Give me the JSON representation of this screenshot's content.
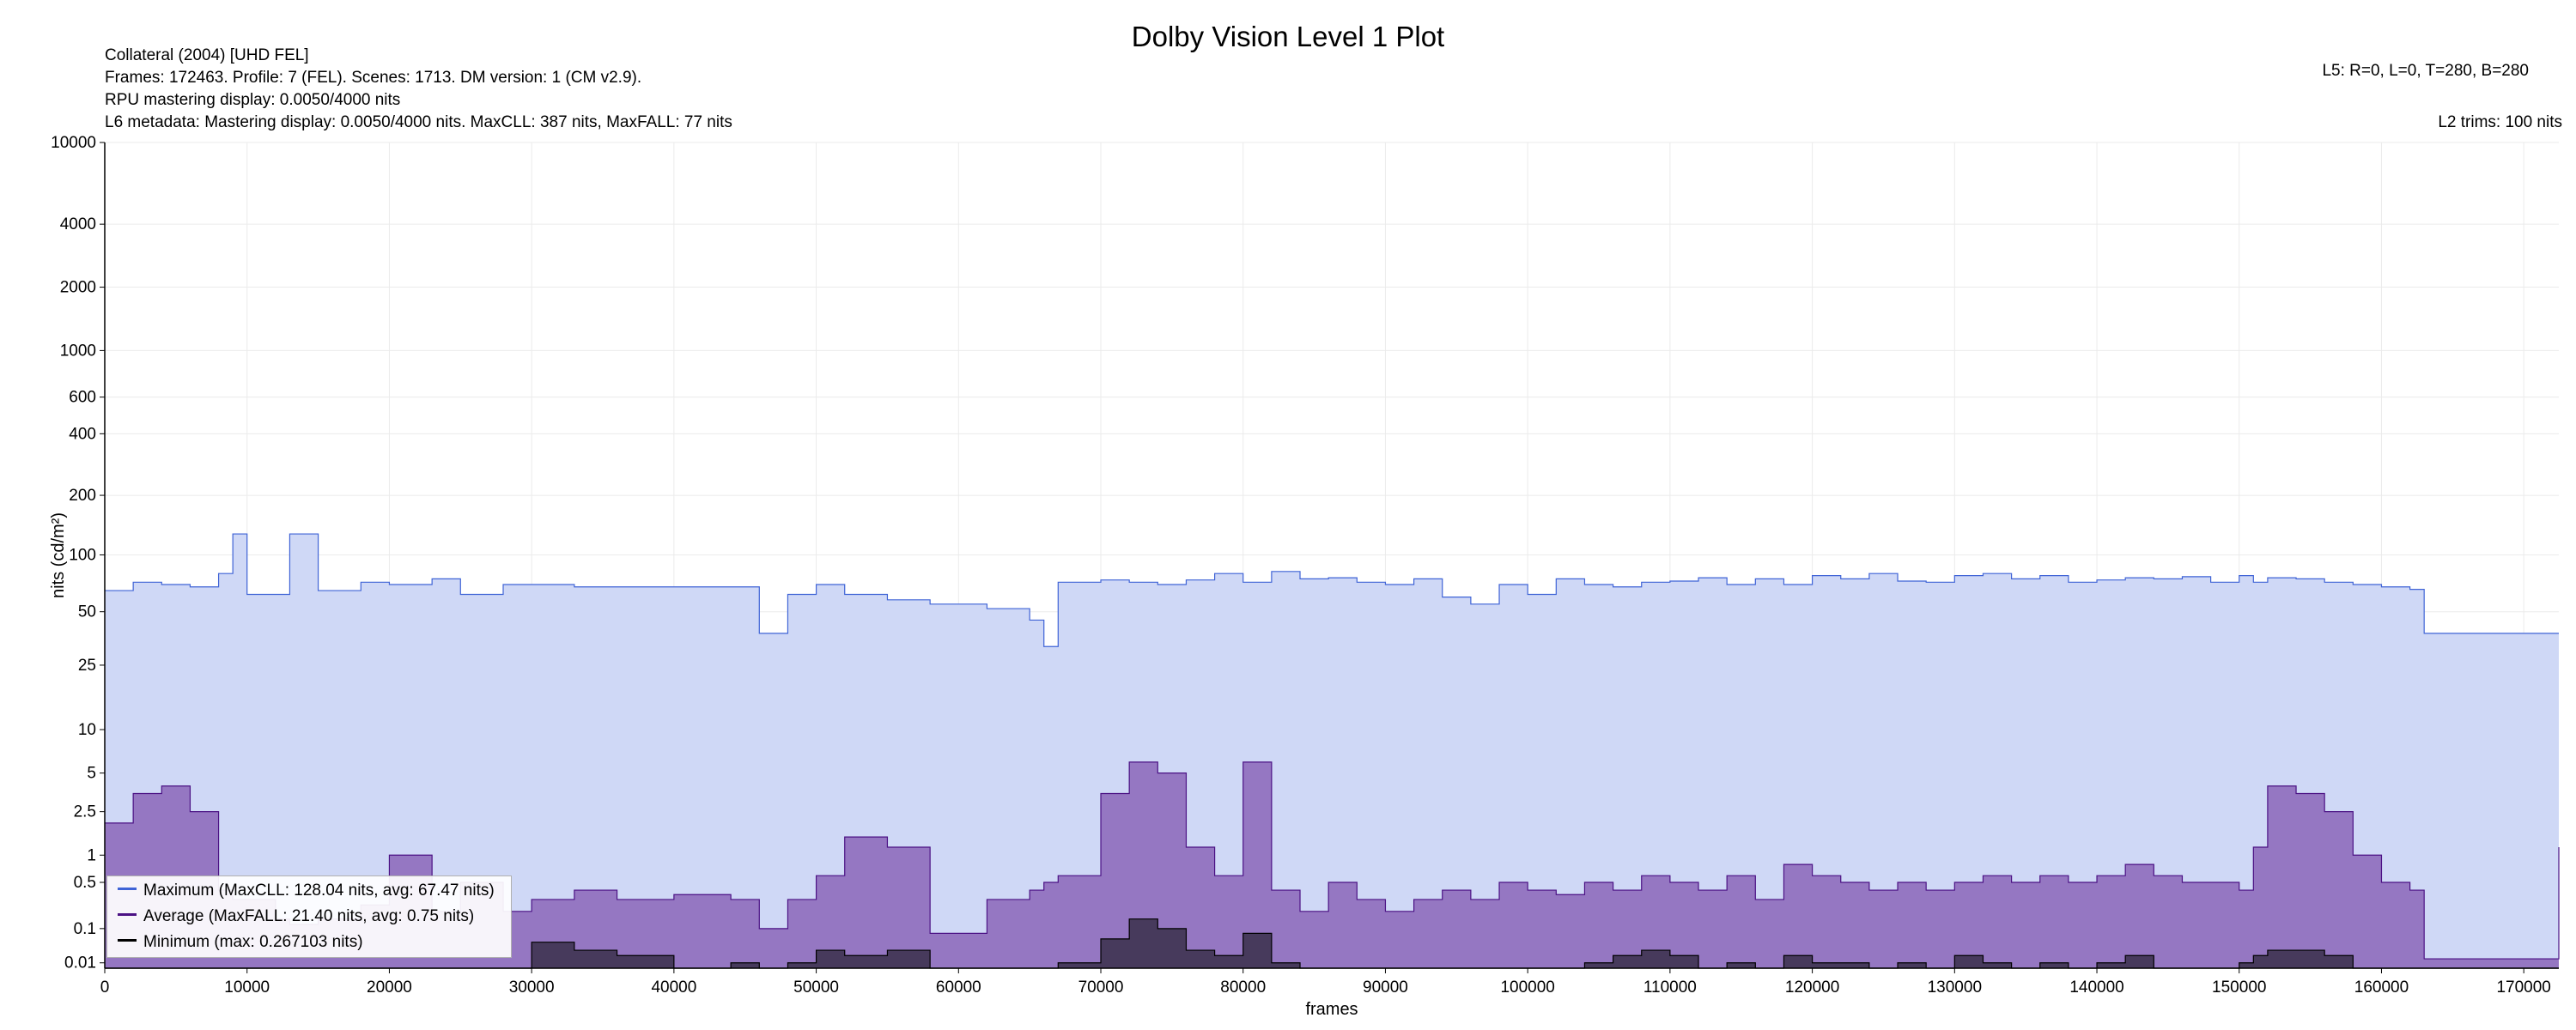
{
  "title": "Dolby Vision Level 1 Plot",
  "info": {
    "line1": "Collateral (2004) [UHD FEL]",
    "line2": "Frames: 172463. Profile: 7 (FEL). Scenes: 1713. DM version: 1 (CM v2.9).",
    "line3": "RPU mastering display: 0.0050/4000 nits",
    "line4": "L6 metadata: Mastering display: 0.0050/4000 nits. MaxCLL: 387 nits, MaxFALL: 77 nits",
    "l5": "L5: R=0, L=0, T=280, B=280",
    "l2": "L2 trims: 100 nits"
  },
  "legend": {
    "maximum": "Maximum (MaxCLL: 128.04 nits, avg: 67.47 nits)",
    "average": "Average (MaxFALL: 21.40 nits, avg: 0.75 nits)",
    "minimum": "Minimum (max: 0.267103 nits)"
  },
  "colors": {
    "maximum_line": "#3f63d6",
    "maximum_fill": "#cfd8f6",
    "average_line": "#4b1184",
    "average_fill": "#9577c2",
    "minimum_line": "#000000",
    "minimum_fill": "#3a2f4a"
  },
  "chart_data": {
    "type": "area",
    "title": "Dolby Vision Level 1 Plot",
    "xlabel": "frames",
    "ylabel": "nits (cd/m²)",
    "xlim": [
      0,
      172463
    ],
    "ylim": [
      0.005,
      10000
    ],
    "yscale": "PQ (non-linear)",
    "grid": true,
    "legend_position": "bottom-left",
    "x_ticks": [
      0,
      10000,
      20000,
      30000,
      40000,
      50000,
      60000,
      70000,
      80000,
      90000,
      100000,
      110000,
      120000,
      130000,
      140000,
      150000,
      160000,
      170000
    ],
    "y_ticks": [
      0.01,
      0.1,
      0.5,
      1,
      2.5,
      5,
      10,
      25,
      50,
      100,
      200,
      400,
      600,
      1000,
      2000,
      4000,
      10000
    ],
    "y_tick_labels": [
      "0.01",
      "0.1",
      "0.5",
      "1",
      "2.5",
      "5",
      "10",
      "25",
      "50",
      "100",
      "200",
      "400",
      "600",
      "1000",
      "2000",
      "4000",
      "10000"
    ],
    "x": [
      0,
      2000,
      4000,
      6000,
      8000,
      9000,
      10000,
      12000,
      13000,
      15000,
      18000,
      20000,
      23000,
      25000,
      28000,
      30000,
      33000,
      36000,
      40000,
      44000,
      46000,
      48000,
      50000,
      52000,
      55000,
      58000,
      62000,
      65000,
      66000,
      67000,
      70000,
      72000,
      74000,
      76000,
      78000,
      80000,
      82000,
      84000,
      86000,
      88000,
      90000,
      92000,
      94000,
      96000,
      98000,
      100000,
      102000,
      104000,
      106000,
      108000,
      110000,
      112000,
      114000,
      116000,
      118000,
      120000,
      122000,
      124000,
      126000,
      128000,
      130000,
      132000,
      134000,
      136000,
      138000,
      140000,
      142000,
      144000,
      146000,
      148000,
      150000,
      151000,
      152000,
      154000,
      156000,
      158000,
      160000,
      162000,
      163000,
      166000,
      170000,
      172000,
      172463
    ],
    "series": [
      {
        "name": "Maximum (MaxCLL: 128.04 nits, avg: 67.47 nits)",
        "values": [
          65,
          72,
          70,
          68,
          80,
          128,
          62,
          62,
          128,
          65,
          72,
          70,
          75,
          62,
          70,
          70,
          68,
          68,
          68,
          68,
          38,
          62,
          70,
          62,
          58,
          55,
          52,
          45,
          32,
          72,
          74,
          72,
          70,
          74,
          80,
          72,
          82,
          75,
          76,
          72,
          70,
          75,
          60,
          55,
          70,
          62,
          75,
          70,
          68,
          72,
          73,
          76,
          70,
          75,
          70,
          78,
          75,
          80,
          73,
          72,
          78,
          80,
          75,
          78,
          72,
          74,
          76,
          75,
          77,
          72,
          78,
          72,
          76,
          75,
          72,
          70,
          68,
          66,
          38,
          38,
          38,
          38,
          38
        ]
      },
      {
        "name": "Average (MaxFALL: 21.40 nits, avg: 0.75 nits)",
        "values": [
          2.0,
          3.5,
          4.0,
          2.5,
          0.4,
          0.3,
          0.3,
          0.15,
          0.12,
          0.15,
          0.25,
          1.0,
          0.2,
          0.5,
          0.2,
          0.3,
          0.4,
          0.3,
          0.35,
          0.3,
          0.1,
          0.3,
          0.6,
          1.5,
          1.2,
          0.08,
          0.3,
          0.4,
          0.5,
          0.6,
          3.5,
          6.0,
          5.0,
          1.2,
          0.6,
          6.0,
          0.4,
          0.2,
          0.5,
          0.3,
          0.2,
          0.3,
          0.4,
          0.3,
          0.5,
          0.4,
          0.35,
          0.5,
          0.4,
          0.6,
          0.5,
          0.4,
          0.6,
          0.3,
          0.8,
          0.6,
          0.5,
          0.4,
          0.5,
          0.4,
          0.5,
          0.6,
          0.5,
          0.6,
          0.5,
          0.6,
          0.8,
          0.6,
          0.5,
          0.5,
          0.4,
          1.2,
          4.0,
          3.5,
          2.5,
          1.0,
          0.5,
          0.4,
          0.015,
          0.015,
          0.015,
          0.015,
          1.2
        ]
      },
      {
        "name": "Minimum (max: 0.267103 nits)",
        "values": [
          0.005,
          0.005,
          0.005,
          0.005,
          0.005,
          0.005,
          0.005,
          0.005,
          0.005,
          0.005,
          0.005,
          0.005,
          0.005,
          0.005,
          0.005,
          0.05,
          0.03,
          0.02,
          0.005,
          0.01,
          0.005,
          0.01,
          0.03,
          0.02,
          0.03,
          0.005,
          0.005,
          0.005,
          0.005,
          0.01,
          0.06,
          0.15,
          0.1,
          0.03,
          0.02,
          0.08,
          0.01,
          0.005,
          0.005,
          0.005,
          0.005,
          0.005,
          0.005,
          0.005,
          0.005,
          0.005,
          0.005,
          0.01,
          0.02,
          0.03,
          0.02,
          0.005,
          0.01,
          0.005,
          0.02,
          0.01,
          0.01,
          0.005,
          0.01,
          0.005,
          0.02,
          0.01,
          0.005,
          0.01,
          0.005,
          0.01,
          0.02,
          0.005,
          0.005,
          0.005,
          0.01,
          0.02,
          0.03,
          0.03,
          0.02,
          0.005,
          0.005,
          0.005,
          0.005,
          0.005,
          0.005,
          0.005,
          0.005
        ]
      }
    ]
  }
}
